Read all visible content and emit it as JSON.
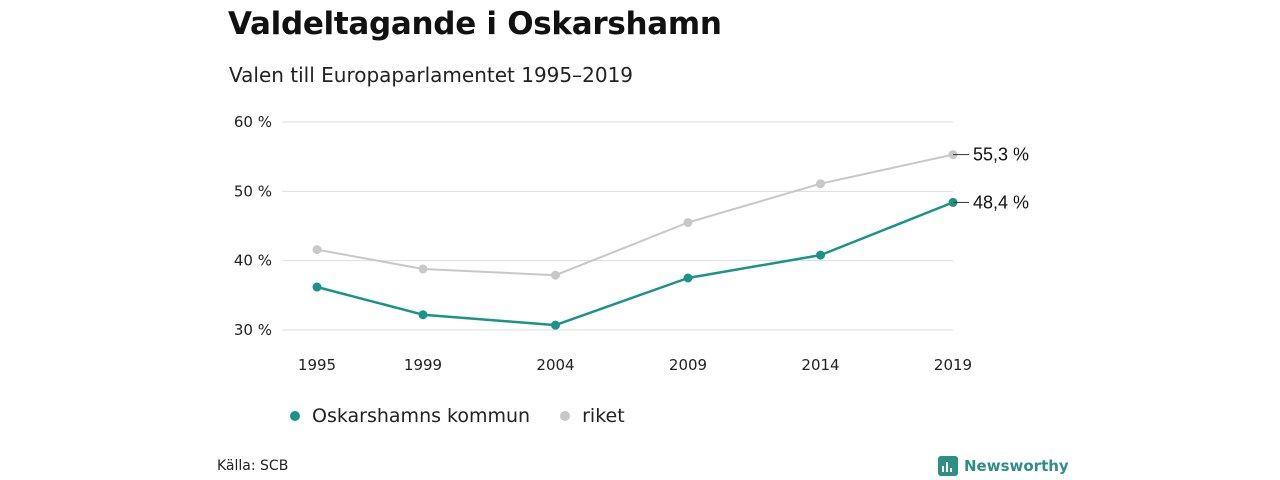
{
  "header": {
    "title": "Valdeltagande i Oskarshamn",
    "subtitle": "Valen till Europaparlamentet 1995–2019"
  },
  "chart_data": {
    "type": "line",
    "title": "Valdeltagande i Oskarshamn",
    "subtitle": "Valen till Europaparlamentet 1995–2019",
    "xlabel": "",
    "ylabel": "",
    "categories": [
      "1995",
      "1999",
      "2004",
      "2009",
      "2014",
      "2019"
    ],
    "x": [
      1995,
      1999,
      2004,
      2009,
      2014,
      2019
    ],
    "yticks": [
      30,
      40,
      50,
      60
    ],
    "ytick_labels": [
      "30 %",
      "40 %",
      "50 %",
      "60 %"
    ],
    "ylim": [
      30,
      60
    ],
    "grid": true,
    "legend_position": "bottom-left",
    "series": [
      {
        "name": "Oskarshamns kommun",
        "color": "#1a9484",
        "values": [
          36.2,
          32.2,
          30.7,
          37.5,
          40.8,
          48.4
        ],
        "end_label": "48,4 %"
      },
      {
        "name": "riket",
        "color": "#c8c8c8",
        "values": [
          41.6,
          38.8,
          37.9,
          45.5,
          51.1,
          55.3
        ],
        "end_label": "55,3 %"
      }
    ]
  },
  "footer": {
    "source": "Källa: SCB",
    "brand": "Newsworthy",
    "brand_color": "#2f8f82"
  }
}
